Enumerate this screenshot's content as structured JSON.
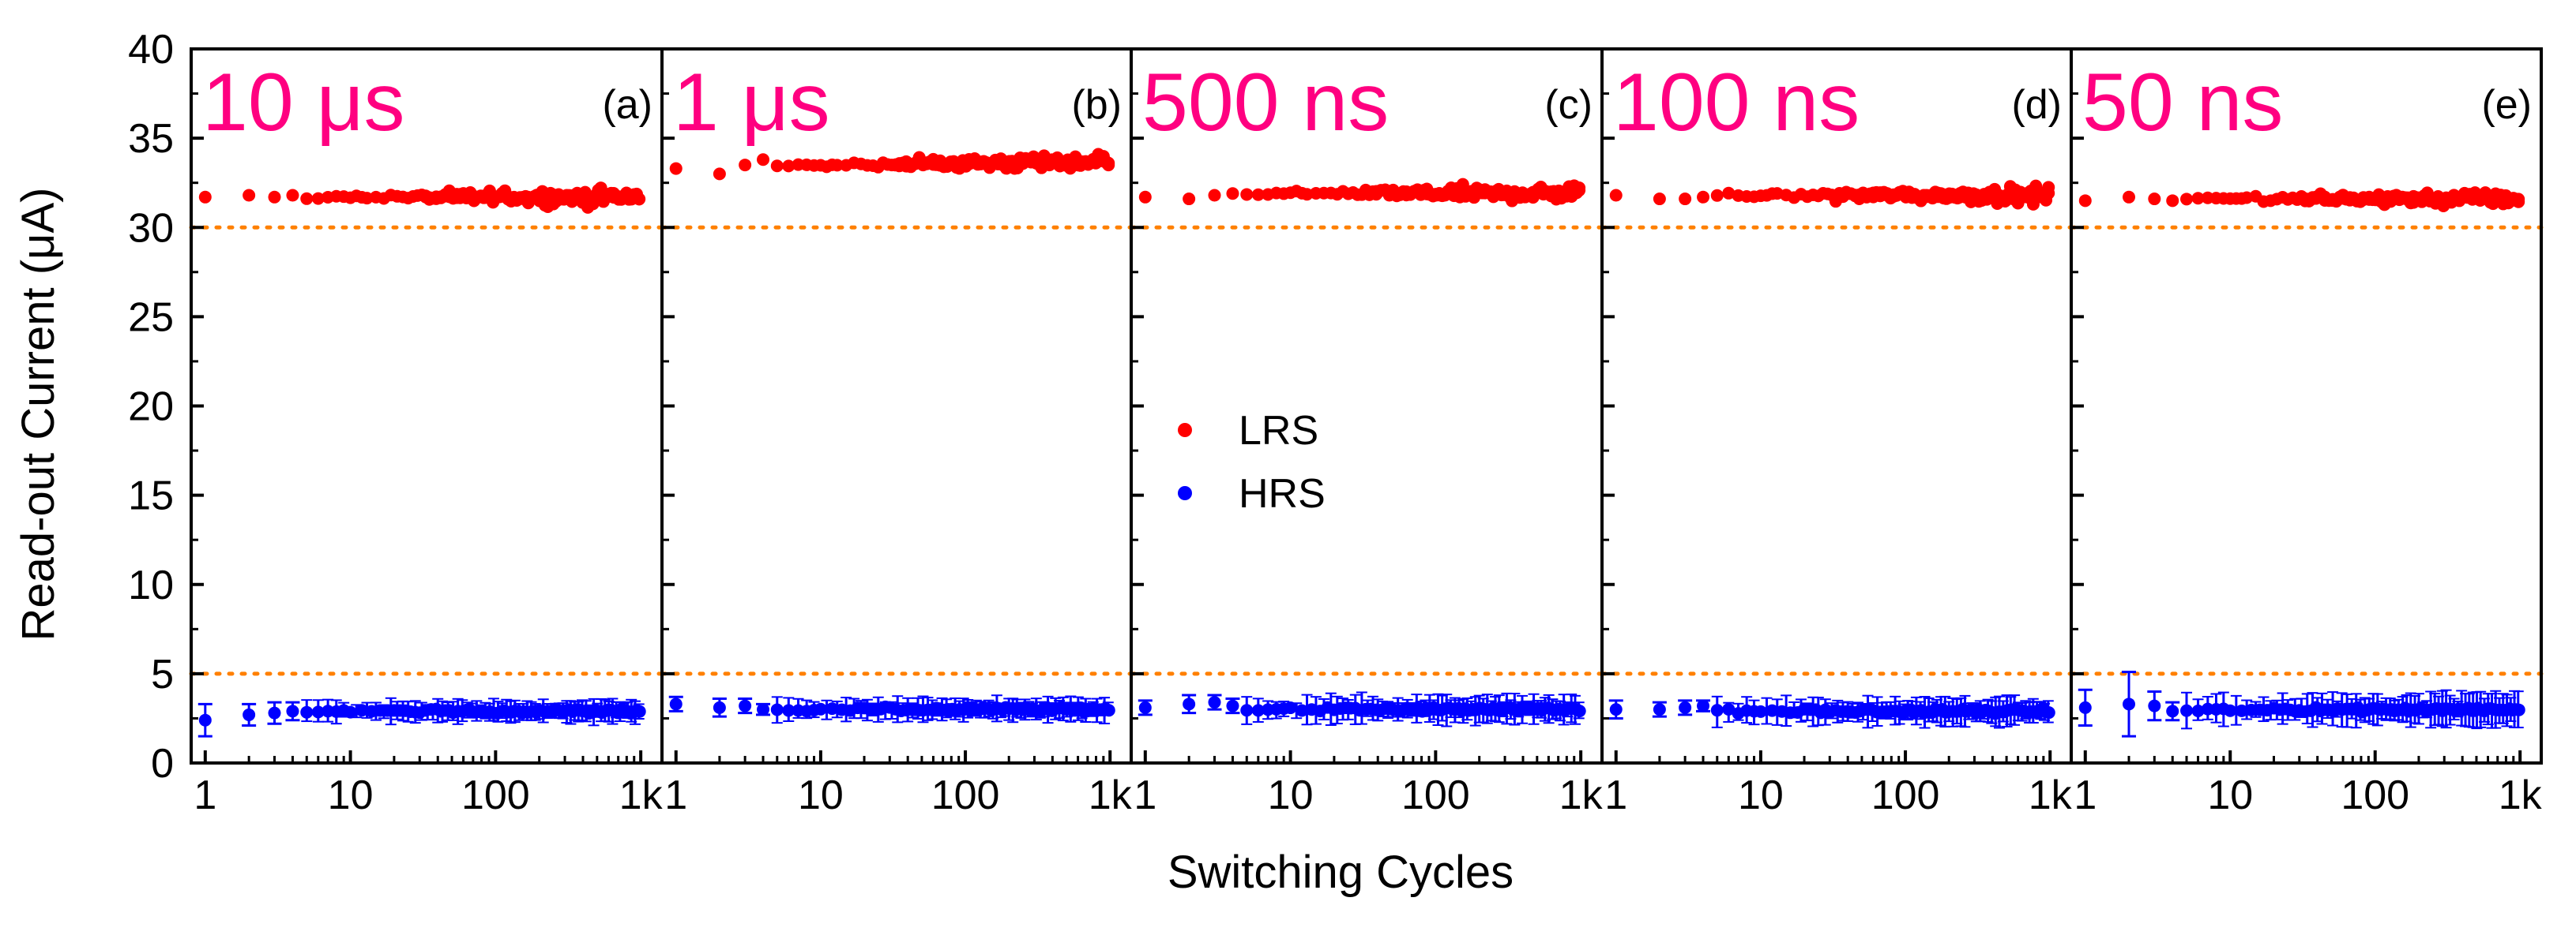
{
  "chart_data": {
    "type": "scatter",
    "xlabel": "Switching Cycles",
    "ylabel": "Read-out Current (μA)",
    "ylim": [
      0,
      40
    ],
    "xscale": "log",
    "xlim": [
      0.8,
      1400
    ],
    "x_ticks": [
      1,
      10,
      100,
      1000
    ],
    "x_tick_labels": [
      "1",
      "10",
      "100",
      "1k"
    ],
    "y_ticks": [
      0,
      5,
      10,
      15,
      20,
      25,
      30,
      35,
      40
    ],
    "y_tick_labels": [
      "0",
      "5",
      "10",
      "15",
      "20",
      "25",
      "30",
      "35",
      "40"
    ],
    "colors": {
      "LRS": "#ff0000",
      "HRS": "#0000ff",
      "threshold": "#ff8000",
      "title": "#ff0080"
    },
    "thresholds": [
      30,
      5
    ],
    "legend": {
      "entries": [
        "LRS",
        "HRS"
      ],
      "placement": "center (panel c)"
    },
    "panels": [
      {
        "label": "(a)",
        "title": "10 μs",
        "lrs_mean": 31.7,
        "lrs_first": [
          31.7,
          31.8,
          31.7,
          31.8
        ],
        "hrs_mean": 2.9,
        "hrs_first": [
          2.4,
          2.7,
          2.8,
          2.9
        ],
        "hrs_first_err": [
          0.9,
          0.6,
          0.6,
          0.5
        ],
        "hrs_err": 0.5
      },
      {
        "label": "(b)",
        "title": "1 μs",
        "lrs_mean": 33.3,
        "lrs_first": [
          33.3,
          33.0,
          33.5,
          33.8
        ],
        "hrs_mean": 3.0,
        "hrs_first": [
          3.3,
          3.1,
          3.2,
          3.0
        ],
        "hrs_first_err": [
          0.4,
          0.5,
          0.4,
          0.3
        ],
        "hrs_err": 0.5
      },
      {
        "label": "(c)",
        "title": "500 ns",
        "lrs_mean": 31.9,
        "lrs_first": [
          31.7,
          31.6,
          31.8,
          31.9
        ],
        "hrs_mean": 3.0,
        "hrs_first": [
          3.1,
          3.3,
          3.4,
          3.2
        ],
        "hrs_first_err": [
          0.4,
          0.5,
          0.4,
          0.4
        ],
        "hrs_err": 0.6
      },
      {
        "label": "(d)",
        "title": "100 ns",
        "lrs_mean": 31.8,
        "lrs_first": [
          31.8,
          31.6,
          31.6,
          31.7
        ],
        "hrs_mean": 2.9,
        "hrs_first": [
          3.0,
          3.0,
          3.1,
          3.2
        ],
        "hrs_first_err": [
          0.5,
          0.4,
          0.4,
          0.3
        ],
        "hrs_err": 0.6
      },
      {
        "label": "(e)",
        "title": "50 ns",
        "lrs_mean": 31.6,
        "lrs_first": [
          31.5,
          31.7,
          31.6,
          31.5
        ],
        "hrs_mean": 3.0,
        "hrs_first": [
          3.1,
          3.3,
          3.2,
          2.9
        ],
        "hrs_first_err": [
          1.0,
          1.8,
          0.8,
          0.5
        ],
        "hrs_err": 0.7
      }
    ]
  }
}
